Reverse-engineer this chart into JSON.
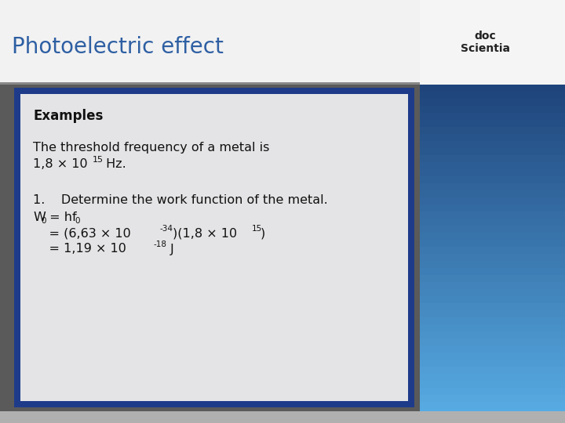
{
  "title": "Photoelectric effect",
  "title_color": "#2e5fa3",
  "title_fontsize": 20,
  "header_bg_top": "#ffffff",
  "header_bg_bottom": "#d0d0d0",
  "slide_bg": "#5a5a5a",
  "right_panel_top": "#1a3a6a",
  "right_panel_bottom": "#6ab4e8",
  "content_border_color": "#1e3b8a",
  "content_inner_bg": "#e8e8ea",
  "examples_label": "Examples",
  "line1": "The threshold frequency of a metal is",
  "line2_main": "1,8 × 10",
  "line2_sup": "15",
  "line2_end": " Hz.",
  "q1": "1.    Determine the work function of the metal.",
  "eq1_W": "W",
  "eq1_W_sub": "0",
  "eq1_rest": " = hf",
  "eq1_f_sub": "0",
  "eq2_main": "    = (6,63 × 10",
  "eq2_sup1": "-34",
  "eq2_mid": ")(1,8 × 10",
  "eq2_sup2": "15",
  "eq2_end": ")",
  "eq3_main": "    = 1,19 × 10",
  "eq3_sup": "-18",
  "eq3_end": " J"
}
